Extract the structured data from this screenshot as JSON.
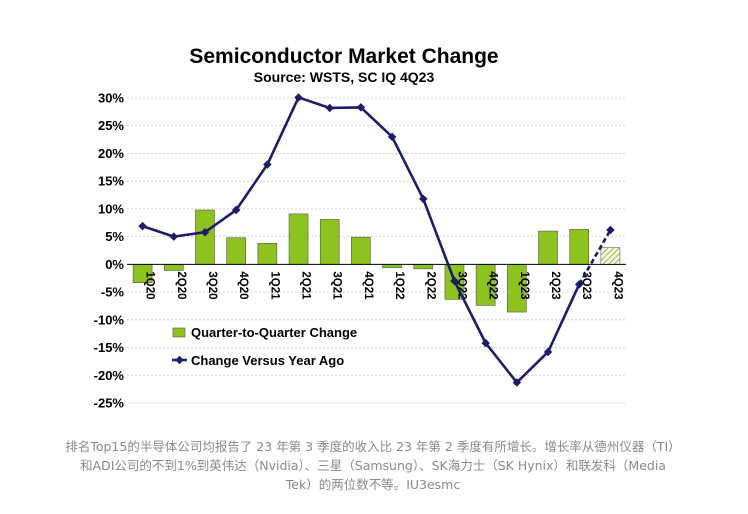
{
  "chart_data": {
    "type": "bar",
    "title": "Semiconductor Market Change",
    "subtitle": "Source: WSTS, SC IQ 4Q23",
    "categories": [
      "1Q20",
      "2Q20",
      "3Q20",
      "4Q20",
      "1Q21",
      "2Q21",
      "3Q21",
      "4Q21",
      "1Q22",
      "2Q22",
      "3Q22",
      "4Q22",
      "1Q23",
      "2Q23",
      "3Q23",
      "4Q23"
    ],
    "series": [
      {
        "name": "Quarter-to-Quarter Change",
        "kind": "bar",
        "values": [
          -3.3,
          -1.1,
          9.8,
          4.8,
          3.8,
          9.1,
          8.1,
          4.9,
          -0.6,
          -0.8,
          -6.3,
          -7.4,
          -8.6,
          6.0,
          6.3,
          3.0
        ],
        "color": "#8dc21f",
        "forecast_index": 15
      },
      {
        "name": "Change Versus Year Ago",
        "kind": "line",
        "values": [
          6.9,
          5.0,
          5.8,
          9.8,
          18.0,
          30.1,
          28.2,
          28.3,
          23.0,
          11.8,
          -3.0,
          -14.2,
          -21.3,
          -15.8,
          -3.6,
          6.2
        ],
        "color": "#1c1c6b",
        "dashed_from_index": 14
      }
    ],
    "yticks": [
      "30%",
      "25%",
      "20%",
      "15%",
      "10%",
      "5%",
      "0%",
      "-5%",
      "-10%",
      "-15%",
      "-20%",
      "-25%"
    ],
    "ylim": [
      -25,
      30
    ],
    "grid": true,
    "legend_position": "lower-left"
  },
  "caption": {
    "line1": "排名Top15的半导体公司均报告了 23 年第 3 季度的收入比 23 年第 2 季度有所增长。增长率从德州仪器（TI）",
    "line2": "和ADI公司的不到1%到英伟达（Nvidia）、三星（Samsung）、SK海力士（SK Hynix）和联发科（Media",
    "line3": "Tek）的两位数不等。IU3esmc"
  },
  "colors": {
    "bar": "#8dc21f",
    "line": "#1c1c6b",
    "grid": "#c8c8c8"
  }
}
